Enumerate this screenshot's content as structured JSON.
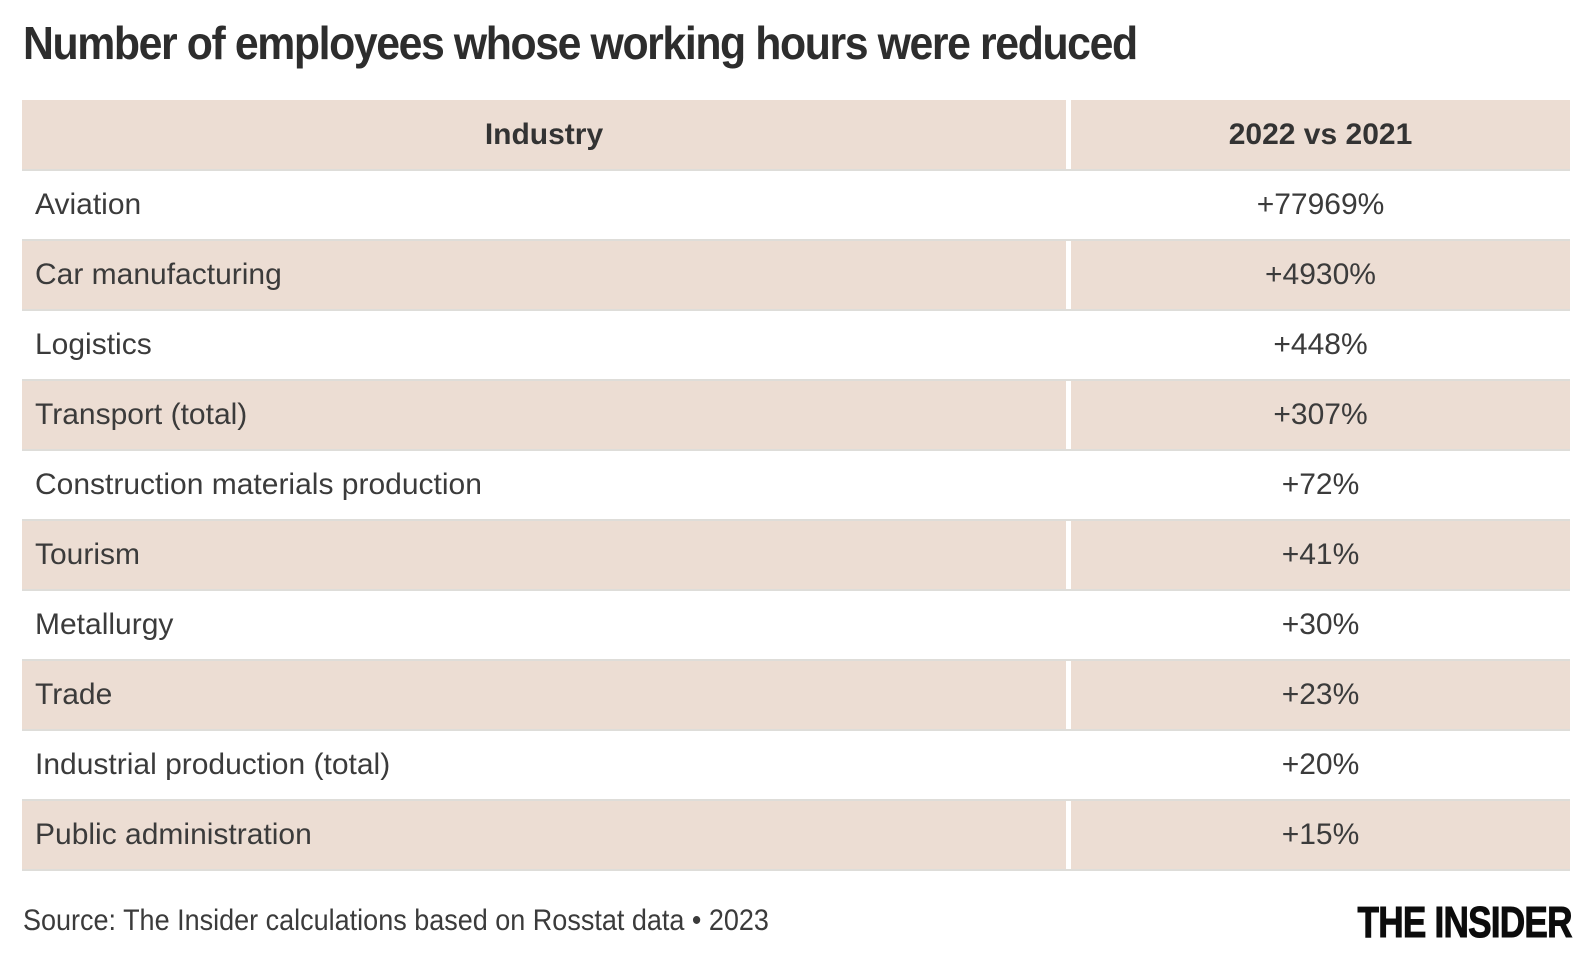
{
  "title": "Number of employees whose working hours were reduced",
  "table": {
    "header": [
      "Industry",
      "2022 vs 2021"
    ],
    "rows": [
      [
        "Aviation",
        "+77969%"
      ],
      [
        "Car manufacturing",
        "+4930%"
      ],
      [
        "Logistics",
        "+448%"
      ],
      [
        "Transport (total)",
        "+307%"
      ],
      [
        "Construction materials production",
        "+72%"
      ],
      [
        "Tourism",
        "+41%"
      ],
      [
        "Metallurgy",
        "+30%"
      ],
      [
        "Trade",
        "+23%"
      ],
      [
        "Industrial production (total)",
        "+20%"
      ],
      [
        "Public administration",
        "+15%"
      ]
    ]
  },
  "footer": {
    "source": "Source: The Insider calculations based on Rosstat data • 2023",
    "brand": "THE INSIDER"
  },
  "colors": {
    "stripe": "#ecddd3",
    "separator": "#deddd9",
    "title_text": "#2d2d2d",
    "body_text": "#3b3b3b",
    "brand_text": "#0c0c0c"
  },
  "chart_data": {
    "type": "table",
    "title": "Number of employees whose working hours were reduced",
    "columns": [
      "Industry",
      "2022 vs 2021"
    ],
    "categories": [
      "Aviation",
      "Car manufacturing",
      "Logistics",
      "Transport (total)",
      "Construction materials production",
      "Tourism",
      "Metallurgy",
      "Trade",
      "Industrial production (total)",
      "Public administration"
    ],
    "values_percent_change": [
      77969,
      4930,
      448,
      307,
      72,
      41,
      30,
      23,
      20,
      15
    ],
    "value_labels": [
      "+77969%",
      "+4930%",
      "+448%",
      "+307%",
      "+72%",
      "+41%",
      "+30%",
      "+23%",
      "+20%",
      "+15%"
    ],
    "layout": {
      "striped_rows": true,
      "stripe_color": "#ecddd3",
      "header_background": "#ecddd3",
      "value_column_align": "center",
      "industry_column_align": "left"
    },
    "source": "Source: The Insider calculations based on Rosstat data • 2023",
    "publisher": "THE INSIDER"
  }
}
